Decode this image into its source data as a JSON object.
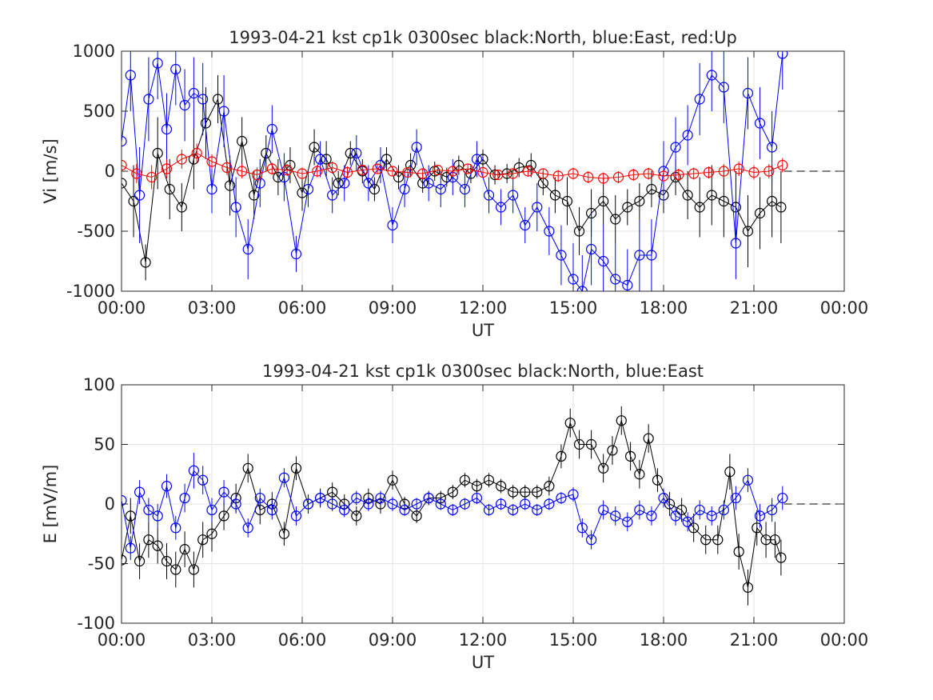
{
  "chart_data": [
    {
      "type": "scatter",
      "title": "1993-04-21 kst cp1k 0300sec black:North, blue:East, red:Up",
      "xlabel": "UT",
      "ylabel": "Vi [m/s]",
      "xlim": [
        0,
        24
      ],
      "ylim": [
        -1000,
        1000
      ],
      "xticks": [
        0,
        3,
        6,
        9,
        12,
        15,
        18,
        21,
        24
      ],
      "xticklabels": [
        "00:00",
        "03:00",
        "06:00",
        "09:00",
        "12:00",
        "15:00",
        "18:00",
        "21:00",
        "00:00"
      ],
      "yticks": [
        -1000,
        -500,
        0,
        500,
        1000
      ],
      "yticklabels": [
        "-1000",
        "-500",
        "0",
        "500",
        "1000"
      ],
      "grid": true,
      "zero_line": {
        "from": 22,
        "to": 24,
        "style": "dashed"
      },
      "series": [
        {
          "name": "North",
          "color": "#000000",
          "x": [
            0.0,
            0.4,
            0.8,
            1.2,
            1.6,
            2.0,
            2.4,
            2.8,
            3.2,
            3.6,
            4.0,
            4.4,
            4.8,
            5.2,
            5.6,
            6.0,
            6.4,
            6.8,
            7.2,
            7.6,
            8.0,
            8.4,
            8.8,
            9.2,
            9.6,
            10.0,
            10.4,
            10.8,
            11.2,
            11.6,
            12.0,
            12.4,
            12.8,
            13.2,
            13.6,
            14.0,
            14.4,
            14.8,
            15.2,
            15.6,
            16.0,
            16.4,
            16.8,
            17.2,
            17.6,
            18.0,
            18.4,
            18.8,
            19.2,
            19.6,
            20.0,
            20.4,
            20.8,
            21.2,
            21.6,
            21.9
          ],
          "y": [
            -100,
            -250,
            -760,
            150,
            -150,
            -300,
            100,
            400,
            600,
            -120,
            250,
            -200,
            150,
            -50,
            50,
            -180,
            200,
            100,
            -100,
            150,
            0,
            -150,
            100,
            -50,
            50,
            -100,
            0,
            -50,
            50,
            -20,
            100,
            -30,
            -20,
            30,
            50,
            -100,
            -200,
            -250,
            -500,
            -350,
            -250,
            -400,
            -300,
            -250,
            -150,
            -200,
            -50,
            -200,
            -300,
            -200,
            -250,
            -300,
            -500,
            -350,
            -250,
            -300
          ],
          "err": [
            150,
            300,
            150,
            300,
            250,
            200,
            250,
            300,
            200,
            250,
            200,
            200,
            150,
            150,
            150,
            150,
            150,
            150,
            100,
            100,
            100,
            100,
            100,
            100,
            100,
            80,
            80,
            80,
            80,
            80,
            80,
            80,
            80,
            80,
            100,
            100,
            150,
            200,
            200,
            200,
            200,
            200,
            150,
            150,
            150,
            150,
            150,
            200,
            250,
            250,
            300,
            300,
            300,
            300,
            300,
            300
          ]
        },
        {
          "name": "East",
          "color": "#0000ff",
          "x": [
            0.0,
            0.3,
            0.6,
            0.9,
            1.2,
            1.5,
            1.8,
            2.1,
            2.4,
            2.7,
            3.0,
            3.4,
            3.8,
            4.2,
            4.6,
            5.0,
            5.4,
            5.8,
            6.2,
            6.6,
            7.0,
            7.4,
            7.8,
            8.2,
            8.6,
            9.0,
            9.4,
            9.8,
            10.2,
            10.6,
            11.0,
            11.4,
            11.8,
            12.2,
            12.6,
            13.0,
            13.4,
            13.8,
            14.2,
            14.6,
            15.0,
            15.3,
            15.6,
            16.0,
            16.4,
            16.8,
            17.2,
            17.6,
            18.0,
            18.4,
            18.8,
            19.2,
            19.6,
            20.0,
            20.4,
            20.8,
            21.2,
            21.6,
            21.95
          ],
          "y": [
            250,
            800,
            -200,
            600,
            900,
            350,
            850,
            550,
            650,
            600,
            -150,
            500,
            -300,
            -650,
            -100,
            350,
            -50,
            -690,
            -150,
            100,
            -200,
            -100,
            150,
            -100,
            50,
            -450,
            -150,
            200,
            -100,
            -150,
            -50,
            -150,
            100,
            -200,
            -300,
            -200,
            -450,
            -300,
            -500,
            -700,
            -900,
            -1000,
            -650,
            -750,
            -900,
            -950,
            -700,
            -700,
            0,
            200,
            300,
            600,
            800,
            700,
            -600,
            650,
            400,
            200,
            980
          ],
          "err": [
            400,
            300,
            400,
            350,
            300,
            300,
            300,
            300,
            300,
            300,
            200,
            300,
            250,
            250,
            200,
            200,
            200,
            150,
            150,
            150,
            150,
            150,
            150,
            150,
            150,
            150,
            150,
            150,
            150,
            150,
            150,
            150,
            150,
            150,
            150,
            150,
            150,
            200,
            200,
            250,
            300,
            300,
            300,
            300,
            300,
            300,
            300,
            300,
            250,
            250,
            250,
            300,
            300,
            300,
            300,
            300,
            300,
            300,
            300
          ]
        },
        {
          "name": "Up",
          "color": "#ff0000",
          "x": [
            0.0,
            0.5,
            1.0,
            1.5,
            2.0,
            2.5,
            3.0,
            3.5,
            4.0,
            4.5,
            5.0,
            5.5,
            6.0,
            6.5,
            7.0,
            7.5,
            8.0,
            8.5,
            9.0,
            9.5,
            10.0,
            10.5,
            11.0,
            11.5,
            12.0,
            12.5,
            13.0,
            13.5,
            14.0,
            14.5,
            15.0,
            15.5,
            16.0,
            16.5,
            17.0,
            17.5,
            18.0,
            18.5,
            19.0,
            19.5,
            20.0,
            20.5,
            21.0,
            21.5,
            21.95
          ],
          "y": [
            50,
            -20,
            -50,
            20,
            100,
            150,
            80,
            30,
            0,
            -30,
            20,
            10,
            -20,
            0,
            30,
            -10,
            10,
            20,
            0,
            -10,
            -20,
            10,
            0,
            20,
            -10,
            -30,
            -20,
            0,
            -20,
            -40,
            -20,
            -50,
            -60,
            -50,
            -30,
            -20,
            -40,
            -30,
            -20,
            -10,
            0,
            20,
            -10,
            0,
            50
          ],
          "err": [
            80,
            80,
            100,
            80,
            80,
            80,
            60,
            60,
            60,
            60,
            50,
            50,
            50,
            50,
            50,
            50,
            40,
            40,
            40,
            40,
            40,
            40,
            40,
            40,
            40,
            40,
            40,
            40,
            40,
            50,
            50,
            50,
            50,
            50,
            50,
            50,
            50,
            50,
            50,
            50,
            60,
            60,
            60,
            60,
            60
          ]
        }
      ]
    },
    {
      "type": "scatter",
      "title": "1993-04-21 kst cp1k 0300sec black:North, blue:East",
      "xlabel": "UT",
      "ylabel": "E [mV/m]",
      "xlim": [
        0,
        24
      ],
      "ylim": [
        -100,
        100
      ],
      "xticks": [
        0,
        3,
        6,
        9,
        12,
        15,
        18,
        21,
        24
      ],
      "xticklabels": [
        "00:00",
        "03:00",
        "06:00",
        "09:00",
        "12:00",
        "15:00",
        "18:00",
        "21:00",
        "00:00"
      ],
      "yticks": [
        -100,
        -50,
        0,
        50,
        100
      ],
      "yticklabels": [
        "-100",
        "-50",
        "0",
        "50",
        "100"
      ],
      "grid": true,
      "zero_line": {
        "from": 22,
        "to": 24,
        "style": "dashed"
      },
      "series": [
        {
          "name": "North",
          "color": "#000000",
          "x": [
            0.0,
            0.3,
            0.6,
            0.9,
            1.2,
            1.5,
            1.8,
            2.1,
            2.4,
            2.7,
            3.0,
            3.4,
            3.8,
            4.2,
            4.6,
            5.0,
            5.4,
            5.8,
            6.2,
            6.6,
            7.0,
            7.4,
            7.8,
            8.2,
            8.6,
            9.0,
            9.4,
            9.8,
            10.2,
            10.6,
            11.0,
            11.4,
            11.8,
            12.2,
            12.6,
            13.0,
            13.4,
            13.8,
            14.2,
            14.6,
            14.9,
            15.2,
            15.6,
            16.0,
            16.3,
            16.6,
            16.9,
            17.2,
            17.5,
            17.8,
            18.2,
            18.6,
            19.0,
            19.4,
            19.8,
            20.2,
            20.5,
            20.8,
            21.1,
            21.4,
            21.7,
            21.9
          ],
          "y": [
            -47,
            -10,
            -48,
            -30,
            -35,
            -48,
            -55,
            -38,
            -55,
            -30,
            -25,
            -10,
            5,
            30,
            -5,
            0,
            -25,
            30,
            0,
            5,
            10,
            0,
            -10,
            5,
            0,
            20,
            0,
            -10,
            5,
            5,
            10,
            20,
            15,
            20,
            15,
            10,
            10,
            10,
            15,
            40,
            68,
            50,
            50,
            30,
            45,
            70,
            40,
            25,
            55,
            20,
            0,
            -5,
            -20,
            -30,
            -30,
            27,
            -40,
            -70,
            -20,
            -30,
            -30,
            -45
          ],
          "err": [
            15,
            15,
            15,
            15,
            15,
            15,
            15,
            15,
            15,
            15,
            15,
            12,
            12,
            12,
            12,
            10,
            10,
            10,
            8,
            8,
            8,
            8,
            8,
            8,
            8,
            8,
            6,
            6,
            6,
            6,
            6,
            6,
            6,
            6,
            6,
            6,
            6,
            6,
            8,
            10,
            12,
            12,
            12,
            12,
            12,
            12,
            12,
            12,
            12,
            10,
            10,
            10,
            12,
            12,
            12,
            15,
            15,
            15,
            15,
            15,
            15,
            15
          ]
        },
        {
          "name": "East",
          "color": "#0000ff",
          "x": [
            0.0,
            0.3,
            0.6,
            0.9,
            1.2,
            1.5,
            1.8,
            2.1,
            2.4,
            2.7,
            3.0,
            3.4,
            3.8,
            4.2,
            4.6,
            5.0,
            5.4,
            5.8,
            6.2,
            6.6,
            7.0,
            7.4,
            7.8,
            8.2,
            8.6,
            9.0,
            9.4,
            9.8,
            10.2,
            10.6,
            11.0,
            11.4,
            11.8,
            12.2,
            12.6,
            13.0,
            13.4,
            13.8,
            14.2,
            14.6,
            15.0,
            15.3,
            15.6,
            16.0,
            16.4,
            16.8,
            17.2,
            17.6,
            18.0,
            18.4,
            18.8,
            19.2,
            19.6,
            20.0,
            20.4,
            20.8,
            21.2,
            21.6,
            21.95
          ],
          "y": [
            3,
            -37,
            10,
            -5,
            -10,
            15,
            -20,
            5,
            28,
            20,
            -5,
            10,
            0,
            -20,
            5,
            -5,
            22,
            -10,
            0,
            5,
            0,
            -5,
            5,
            0,
            5,
            0,
            -5,
            0,
            5,
            0,
            -5,
            0,
            5,
            -5,
            0,
            -5,
            0,
            -5,
            0,
            5,
            8,
            -20,
            -30,
            -5,
            -10,
            -15,
            -5,
            -10,
            5,
            -10,
            -15,
            -5,
            -10,
            -5,
            5,
            20,
            -10,
            -5,
            5
          ],
          "err": [
            10,
            10,
            10,
            10,
            10,
            10,
            10,
            12,
            15,
            12,
            10,
            10,
            8,
            8,
            8,
            8,
            8,
            8,
            6,
            6,
            6,
            6,
            6,
            6,
            6,
            6,
            5,
            5,
            5,
            5,
            5,
            5,
            5,
            5,
            5,
            5,
            5,
            5,
            5,
            5,
            6,
            8,
            8,
            8,
            8,
            8,
            8,
            8,
            8,
            8,
            8,
            8,
            8,
            8,
            10,
            10,
            10,
            10,
            10
          ]
        }
      ]
    }
  ]
}
